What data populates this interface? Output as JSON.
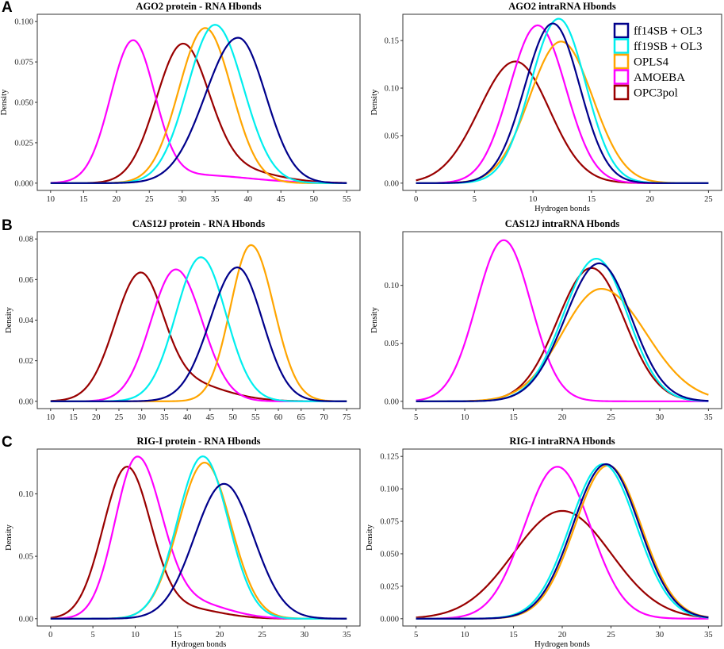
{
  "colors": {
    "ff14": "#00008B",
    "ff19": "#00EEEE",
    "opls": "#FFA500",
    "amoeba": "#FF00FF",
    "opc3": "#990000"
  },
  "legend": {
    "position": "top-right of AGO2 intraRNA panel",
    "items": [
      {
        "label": "ff14SB + OL3",
        "key": "ff14"
      },
      {
        "label": "ff19SB + OL3",
        "key": "ff19"
      },
      {
        "label": "OPLS4",
        "key": "opls"
      },
      {
        "label": "AMOEBA",
        "key": "amoeba"
      },
      {
        "label": "OPC3pol",
        "key": "opc3"
      }
    ]
  },
  "chart_data": [
    {
      "type": "line",
      "letter": "A",
      "title": "AGO2 protein - RNA Hbonds",
      "xlabel": "",
      "ylabel": "Density",
      "xlim": [
        10,
        55
      ],
      "ylim": [
        0,
        0.1
      ],
      "xticks": [
        10,
        15,
        20,
        25,
        30,
        35,
        40,
        45,
        50,
        55
      ],
      "yticks": [
        0.0,
        0.025,
        0.05,
        0.075,
        0.1
      ],
      "ytick_labels": [
        "0.000",
        "0.025",
        "0.050",
        "0.075",
        "0.100"
      ],
      "series": [
        {
          "name": "ff14SB + OL3",
          "key": "ff14",
          "peak_x": 38.5,
          "peak_y": 0.09,
          "sd_left": 5.0,
          "sd_right": 4.2
        },
        {
          "name": "ff19SB + OL3",
          "key": "ff19",
          "peak_x": 35.0,
          "peak_y": 0.098,
          "sd_left": 4.2,
          "sd_right": 4.3
        },
        {
          "name": "OPLS4",
          "key": "opls",
          "peak_x": 33.5,
          "peak_y": 0.096,
          "sd_left": 4.0,
          "sd_right": 4.0
        },
        {
          "name": "AMOEBA",
          "key": "amoeba",
          "peak_x": 22.5,
          "peak_y": 0.086,
          "sd_left": 3.4,
          "sd_right": 3.3,
          "tail_y": 0.005,
          "tail_mu": 32,
          "tail_sd": 8
        },
        {
          "name": "OPC3pol",
          "key": "opc3",
          "peak_x": 30.0,
          "peak_y": 0.083,
          "sd_left": 4.0,
          "sd_right": 4.0,
          "tail_y": 0.008,
          "tail_mu": 38,
          "tail_sd": 6
        }
      ]
    },
    {
      "type": "line",
      "letter": "",
      "title": "AGO2 intraRNA Hbonds",
      "xlabel": "Hydrogen bonds",
      "ylabel": "Density",
      "xlim": [
        0,
        25
      ],
      "ylim": [
        0,
        0.17
      ],
      "xticks": [
        0,
        5,
        10,
        15,
        20,
        25
      ],
      "yticks": [
        0.0,
        0.05,
        0.1,
        0.15
      ],
      "ytick_labels": [
        "0.00",
        "0.05",
        "0.10",
        "0.15"
      ],
      "series": [
        {
          "name": "ff14SB + OL3",
          "key": "ff14",
          "peak_x": 11.7,
          "peak_y": 0.168,
          "sd_left": 2.4,
          "sd_right": 2.3
        },
        {
          "name": "ff19SB + OL3",
          "key": "ff19",
          "peak_x": 12.2,
          "peak_y": 0.173,
          "sd_left": 2.4,
          "sd_right": 2.3
        },
        {
          "name": "OPLS4",
          "key": "opls",
          "peak_x": 12.4,
          "peak_y": 0.149,
          "sd_left": 2.7,
          "sd_right": 2.7
        },
        {
          "name": "AMOEBA",
          "key": "amoeba",
          "peak_x": 10.4,
          "peak_y": 0.166,
          "sd_left": 2.4,
          "sd_right": 2.4
        },
        {
          "name": "OPC3pol",
          "key": "opc3",
          "peak_x": 8.5,
          "peak_y": 0.128,
          "sd_left": 3.1,
          "sd_right": 2.9
        }
      ]
    },
    {
      "type": "line",
      "letter": "B",
      "title": "CAS12J protein - RNA Hbonds",
      "xlabel": "",
      "ylabel": "Density",
      "xlim": [
        10,
        75
      ],
      "ylim": [
        0,
        0.08
      ],
      "xticks": [
        10,
        15,
        20,
        25,
        30,
        35,
        40,
        45,
        50,
        55,
        60,
        65,
        70,
        75
      ],
      "yticks": [
        0.0,
        0.02,
        0.04,
        0.06,
        0.08
      ],
      "ytick_labels": [
        "0.00",
        "0.02",
        "0.04",
        "0.06",
        "0.08"
      ],
      "series": [
        {
          "name": "ff14SB + OL3",
          "key": "ff14",
          "peak_x": 51.0,
          "peak_y": 0.066,
          "sd_left": 6.0,
          "sd_right": 5.5
        },
        {
          "name": "ff19SB + OL3",
          "key": "ff19",
          "peak_x": 43.0,
          "peak_y": 0.071,
          "sd_left": 5.5,
          "sd_right": 5.5
        },
        {
          "name": "OPLS4",
          "key": "opls",
          "peak_x": 54.0,
          "peak_y": 0.077,
          "sd_left": 4.5,
          "sd_right": 5.0
        },
        {
          "name": "AMOEBA",
          "key": "amoeba",
          "peak_x": 37.5,
          "peak_y": 0.065,
          "sd_left": 5.5,
          "sd_right": 5.8
        },
        {
          "name": "OPC3pol",
          "key": "opc3",
          "peak_x": 29.5,
          "peak_y": 0.057,
          "sd_left": 5.5,
          "sd_right": 5.0,
          "tail_y": 0.01,
          "tail_mu": 38,
          "tail_sd": 9
        }
      ]
    },
    {
      "type": "line",
      "letter": "",
      "title": "CAS12J intraRNA Hbonds",
      "xlabel": "",
      "ylabel": "Density",
      "xlim": [
        5,
        35
      ],
      "ylim": [
        0,
        0.14
      ],
      "xticks": [
        5,
        10,
        15,
        20,
        25,
        30,
        35
      ],
      "yticks": [
        0.0,
        0.05,
        0.1
      ],
      "ytick_labels": [
        "0.00",
        "0.05",
        "0.10"
      ],
      "series": [
        {
          "name": "ff14SB + OL3",
          "key": "ff14",
          "peak_x": 23.8,
          "peak_y": 0.119,
          "sd_left": 3.5,
          "sd_right": 3.3
        },
        {
          "name": "ff19SB + OL3",
          "key": "ff19",
          "peak_x": 23.5,
          "peak_y": 0.123,
          "sd_left": 3.4,
          "sd_right": 3.2
        },
        {
          "name": "OPLS4",
          "key": "opls",
          "peak_x": 24.0,
          "peak_y": 0.097,
          "sd_left": 4.0,
          "sd_right": 4.6
        },
        {
          "name": "AMOEBA",
          "key": "amoeba",
          "peak_x": 14.0,
          "peak_y": 0.139,
          "sd_left": 2.8,
          "sd_right": 2.8
        },
        {
          "name": "OPC3pol",
          "key": "opc3",
          "peak_x": 23.0,
          "peak_y": 0.115,
          "sd_left": 3.5,
          "sd_right": 3.4
        }
      ]
    },
    {
      "type": "line",
      "letter": "C",
      "title": "RIG-I protein - RNA Hbonds",
      "xlabel": "Hydrogen bonds",
      "ylabel": "Density",
      "xlim": [
        0,
        35
      ],
      "ylim": [
        0,
        0.13
      ],
      "xticks": [
        0,
        5,
        10,
        15,
        20,
        25,
        30,
        35
      ],
      "yticks": [
        0.0,
        0.05,
        0.1
      ],
      "ytick_labels": [
        "0.00",
        "0.05",
        "0.10"
      ],
      "series": [
        {
          "name": "ff14SB + OL3",
          "key": "ff14",
          "peak_x": 20.5,
          "peak_y": 0.108,
          "sd_left": 3.5,
          "sd_right": 3.5
        },
        {
          "name": "ff19SB + OL3",
          "key": "ff19",
          "peak_x": 18.0,
          "peak_y": 0.13,
          "sd_left": 3.0,
          "sd_right": 3.0
        },
        {
          "name": "OPLS4",
          "key": "opls",
          "peak_x": 18.2,
          "peak_y": 0.125,
          "sd_left": 3.1,
          "sd_right": 3.1
        },
        {
          "name": "AMOEBA",
          "key": "amoeba",
          "peak_x": 10.2,
          "peak_y": 0.127,
          "sd_left": 2.6,
          "sd_right": 2.9,
          "tail_y": 0.012,
          "tail_mu": 17,
          "tail_sd": 4
        },
        {
          "name": "OPC3pol",
          "key": "opc3",
          "peak_x": 9.0,
          "peak_y": 0.12,
          "sd_left": 2.8,
          "sd_right": 2.8,
          "tail_y": 0.008,
          "tail_mu": 16,
          "tail_sd": 4
        }
      ]
    },
    {
      "type": "line",
      "letter": "",
      "title": "RIG-I intraRNA Hbonds",
      "xlabel": "Hydrogen bonds",
      "ylabel": "Density",
      "xlim": [
        5,
        35
      ],
      "ylim": [
        0,
        0.125
      ],
      "xticks": [
        5,
        10,
        15,
        20,
        25,
        30,
        35
      ],
      "yticks": [
        0.0,
        0.025,
        0.05,
        0.075,
        0.1,
        0.125
      ],
      "ytick_labels": [
        "0.000",
        "0.025",
        "0.050",
        "0.075",
        "0.100",
        "0.125"
      ],
      "series": [
        {
          "name": "ff14SB + OL3",
          "key": "ff14",
          "peak_x": 24.5,
          "peak_y": 0.119,
          "sd_left": 3.4,
          "sd_right": 3.4
        },
        {
          "name": "ff19SB + OL3",
          "key": "ff19",
          "peak_x": 24.2,
          "peak_y": 0.119,
          "sd_left": 3.4,
          "sd_right": 3.4
        },
        {
          "name": "OPLS4",
          "key": "opls",
          "peak_x": 24.7,
          "peak_y": 0.118,
          "sd_left": 3.4,
          "sd_right": 3.4
        },
        {
          "name": "AMOEBA",
          "key": "amoeba",
          "peak_x": 19.5,
          "peak_y": 0.117,
          "sd_left": 3.4,
          "sd_right": 3.4
        },
        {
          "name": "OPC3pol",
          "key": "opc3",
          "peak_x": 20.0,
          "peak_y": 0.083,
          "sd_left": 5.0,
          "sd_right": 5.0
        }
      ]
    }
  ]
}
